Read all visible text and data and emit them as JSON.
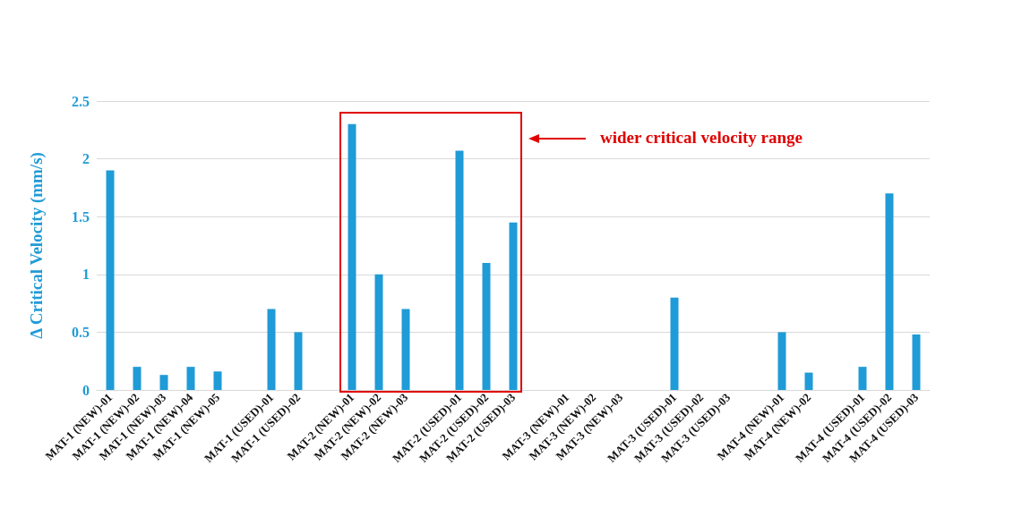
{
  "chart_data": {
    "type": "bar",
    "ylabel": "Δ Critical Velocity (mm/s)",
    "categories": [
      "MAT-1 (NEW)-01",
      "MAT-1 (NEW)-02",
      "MAT-1 (NEW)-03",
      "MAT-1 (NEW)-04",
      "MAT-1 (NEW)-05",
      null,
      "MAT-1 (USED)-01",
      "MAT-1 (USED)-02",
      null,
      "MAT-2 (NEW)-01",
      "MAT-2 (NEW)-02",
      "MAT-2 (NEW)-03",
      null,
      "MAT-2 (USED)-01",
      "MAT-2 (USED)-02",
      "MAT-2 (USED)-03",
      null,
      "MAT-3 (NEW)-01",
      "MAT-3 (NEW)-02",
      "MAT-3 (NEW)-03",
      null,
      "MAT-3 (USED)-01",
      "MAT-3 (USED)-02",
      "MAT-3 (USED)-03",
      null,
      "MAT-4 (NEW)-01",
      "MAT-4 (NEW)-02",
      null,
      "MAT-4 (USED)-01",
      "MAT-4 (USED)-02",
      "MAT-4 (USED)-03"
    ],
    "values": [
      1.9,
      0.2,
      0.13,
      0.2,
      0.16,
      null,
      0.7,
      0.5,
      null,
      2.3,
      1.0,
      0.7,
      null,
      2.07,
      1.1,
      1.45,
      null,
      0,
      0,
      0,
      null,
      0.8,
      0,
      0,
      null,
      0.5,
      0.15,
      null,
      0.2,
      1.7,
      0.48
    ],
    "color": "#1f9bd7",
    "ylim": [
      0,
      2.5
    ],
    "yticks": [
      0,
      0.5,
      1,
      1.5,
      2,
      2.5
    ],
    "grid": "y",
    "annotations": [
      "wider critical velocity range"
    ]
  }
}
